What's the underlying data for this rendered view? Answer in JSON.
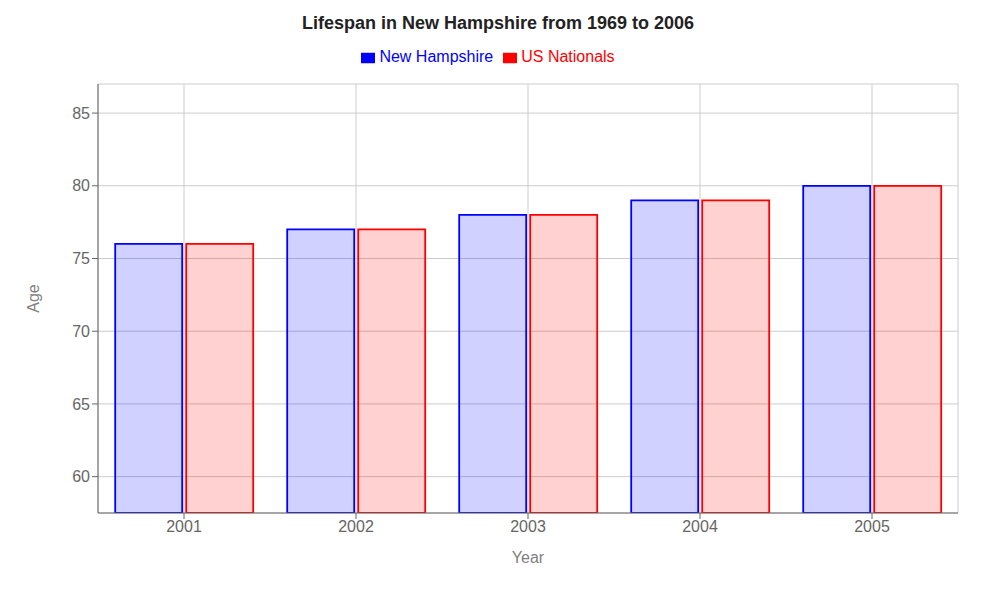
{
  "chart_data": {
    "type": "bar",
    "title": "Lifespan in New Hampshire from 1969 to 2006",
    "xlabel": "Year",
    "ylabel": "Age",
    "categories": [
      "2001",
      "2002",
      "2003",
      "2004",
      "2005"
    ],
    "series": [
      {
        "name": "New Hampshire",
        "color": "#0000ff",
        "values": [
          76,
          77,
          78,
          79,
          80
        ]
      },
      {
        "name": "US Nationals",
        "color": "#ff0000",
        "values": [
          76,
          77,
          78,
          79,
          80
        ]
      }
    ],
    "ylim": [
      57.5,
      87
    ],
    "yticks": [
      60,
      65,
      70,
      75,
      80,
      85
    ],
    "grid": true,
    "legend": "top"
  }
}
